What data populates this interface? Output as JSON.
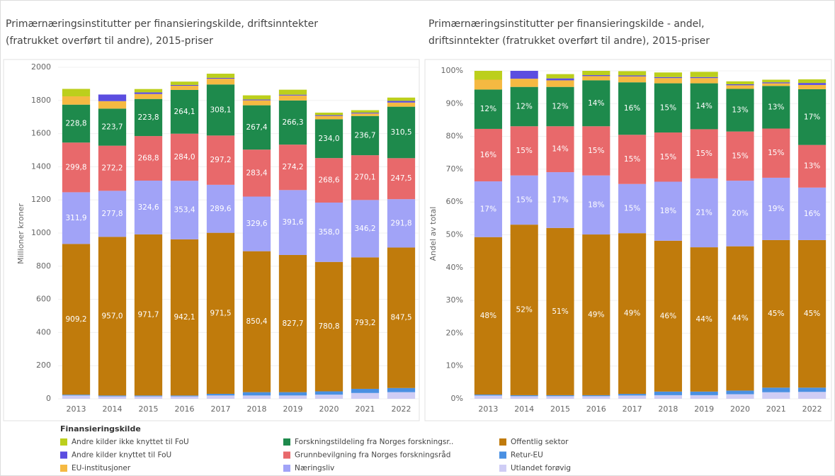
{
  "chart_data": [
    {
      "type": "stacked_bar",
      "title": [
        "Primærnæringsinstitutter per finansieringskilde, driftsinntekter",
        "(fratrukket overført til andre), 2015-priser"
      ],
      "ylabel": "Millioner kroner",
      "legend_title": "Finansieringskilde",
      "categories": [
        "2013",
        "2014",
        "2015",
        "2016",
        "2017",
        "2018",
        "2019",
        "2020",
        "2021",
        "2022"
      ],
      "ylim": [
        0,
        2000
      ],
      "yticks": [
        0,
        200,
        400,
        600,
        800,
        1000,
        1200,
        1400,
        1600,
        1800,
        2000
      ],
      "series": [
        {
          "name": "Andre kilder ikke knyttet til FoU",
          "color": "#bccf1c",
          "values": [
            45,
            0,
            20,
            20,
            25,
            25,
            30,
            15,
            15,
            20
          ]
        },
        {
          "name": "Andre kilder knyttet til FoU",
          "color": "#5b4de0",
          "values": [
            0,
            40,
            10,
            5,
            5,
            5,
            5,
            5,
            5,
            10
          ]
        },
        {
          "name": "EU-institusjoner",
          "color": "#f5b942",
          "values": [
            50,
            45,
            30,
            25,
            35,
            30,
            30,
            20,
            15,
            25
          ]
        },
        {
          "name": "Forskningstildeling fra Norges forskningsr..",
          "color": "#1e8a4c",
          "values": [
            228.8,
            223.7,
            223.8,
            264.1,
            308.1,
            267.4,
            266.3,
            234.0,
            236.7,
            310.5
          ],
          "value_labels": [
            "228,8",
            "223,7",
            "223,8",
            "264,1",
            "308,1",
            "267,4",
            "266,3",
            "234,0",
            "236,7",
            "310,5"
          ]
        },
        {
          "name": "Grunnbevilgning fra Norges forskningsråd",
          "color": "#e8696b",
          "values": [
            299.8,
            272.2,
            268.8,
            284.0,
            297.2,
            283.4,
            274.2,
            268.6,
            270.1,
            247.5
          ],
          "value_labels": [
            "299,8",
            "272,2",
            "268,8",
            "284,0",
            "297,2",
            "283,4",
            "274,2",
            "268,6",
            "270,1",
            "247,5"
          ]
        },
        {
          "name": "Næringsliv",
          "color": "#a1a3f7",
          "values": [
            311.9,
            277.8,
            324.6,
            353.4,
            289.6,
            329.6,
            391.6,
            358.0,
            346.2,
            291.8
          ],
          "value_labels": [
            "311,9",
            "277,8",
            "324,6",
            "353,4",
            "289,6",
            "329,6",
            "391,6",
            "358,0",
            "346,2",
            "291,8"
          ]
        },
        {
          "name": "Offentlig sektor",
          "color": "#c07b0c",
          "values": [
            909.2,
            957.0,
            971.7,
            942.1,
            971.5,
            850.4,
            827.7,
            780.8,
            793.2,
            847.5
          ],
          "value_labels": [
            "909,2",
            "957,0",
            "971,7",
            "942,1",
            "971,5",
            "850,4",
            "827,7",
            "780,8",
            "793,2",
            "847,5"
          ]
        },
        {
          "name": "Retur-EU",
          "color": "#4a90e2",
          "values": [
            5,
            5,
            5,
            5,
            10,
            20,
            20,
            20,
            25,
            25
          ]
        },
        {
          "name": "Utlandet forøvig",
          "color": "#cfcdf5",
          "values": [
            20,
            15,
            15,
            15,
            20,
            20,
            20,
            25,
            35,
            40
          ]
        }
      ]
    },
    {
      "type": "stacked_bar",
      "title": [
        "Primærnæringsinstitutter per finansieringskilde - andel,",
        "driftsinntekter (fratrukket overført til andre), 2015-priser"
      ],
      "ylabel": "Andel av total",
      "categories": [
        "2013",
        "2014",
        "2015",
        "2016",
        "2017",
        "2018",
        "2019",
        "2020",
        "2021",
        "2022"
      ],
      "ylim": [
        0,
        100
      ],
      "yticks": [
        {
          "value": 0,
          "label": "0%"
        },
        {
          "value": 10,
          "label": "10%"
        },
        {
          "value": 20,
          "label": "20%"
        },
        {
          "value": 30,
          "label": "30%"
        },
        {
          "value": 40,
          "label": "40%"
        },
        {
          "value": 50,
          "label": "50%"
        },
        {
          "value": 60,
          "label": "60%"
        },
        {
          "value": 70,
          "label": "70%"
        },
        {
          "value": 80,
          "label": "80%"
        },
        {
          "value": 90,
          "label": "90%"
        },
        {
          "value": 100,
          "label": "100%"
        }
      ],
      "series": [
        {
          "values": [
            2.7,
            0,
            1.3,
            1.3,
            1.3,
            1.4,
            1.6,
            0.9,
            0.8,
            1.1
          ]
        },
        {
          "values": [
            0,
            2.4,
            0.6,
            0.3,
            0.3,
            0.3,
            0.3,
            0.3,
            0.3,
            0.6
          ]
        },
        {
          "values": [
            3,
            2.5,
            2,
            1.3,
            1.8,
            1.6,
            1.6,
            1.1,
            0.8,
            1.3
          ]
        },
        {
          "values": [
            12,
            12,
            12,
            14,
            16,
            15,
            14,
            13,
            13,
            17
          ],
          "value_labels": [
            "12%",
            "12%",
            "12%",
            "14%",
            "16%",
            "15%",
            "14%",
            "13%",
            "13%",
            "17%"
          ]
        },
        {
          "values": [
            16,
            15,
            14,
            15,
            15,
            15,
            15,
            15,
            15,
            13
          ],
          "value_labels": [
            "16%",
            "15%",
            "14%",
            "15%",
            "15%",
            "15%",
            "15%",
            "15%",
            "15%",
            "13%"
          ]
        },
        {
          "values": [
            17,
            15,
            17,
            18,
            15,
            18,
            21,
            20,
            19,
            16
          ],
          "value_labels": [
            "17%",
            "15%",
            "17%",
            "18%",
            "15%",
            "18%",
            "21%",
            "20%",
            "19%",
            "16%"
          ]
        },
        {
          "values": [
            48,
            52,
            51,
            49,
            49,
            46,
            44,
            44,
            45,
            45
          ],
          "value_labels": [
            "48%",
            "52%",
            "51%",
            "49%",
            "49%",
            "46%",
            "44%",
            "44%",
            "45%",
            "45%"
          ]
        },
        {
          "values": [
            0.3,
            0.3,
            0.3,
            0.3,
            0.5,
            1.1,
            1.1,
            1.1,
            1.4,
            1.3
          ]
        },
        {
          "values": [
            1,
            0.8,
            0.8,
            0.8,
            1,
            1.1,
            1.1,
            1.4,
            2,
            2.1
          ]
        }
      ]
    }
  ]
}
